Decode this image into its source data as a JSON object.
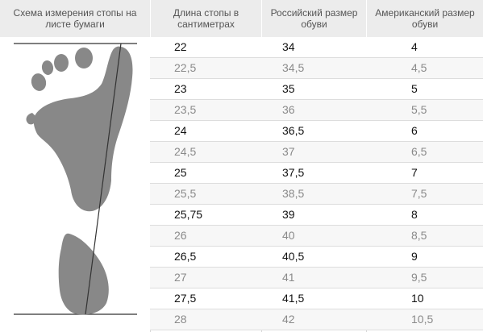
{
  "headers": {
    "diagram": "Схема измерения стопы на листе бумаги",
    "cm": "Длина стопы в сантиметрах",
    "ru": "Российский размер обуви",
    "us": "Американский размер обуви"
  },
  "colors": {
    "header_bg": "#ececec",
    "foot_fill": "#888888",
    "line": "#333333",
    "row_alt": "#f7f7f7"
  },
  "rows": [
    {
      "cm": "22",
      "ru": "34",
      "us": "4"
    },
    {
      "cm": "22,5",
      "ru": "34,5",
      "us": "4,5"
    },
    {
      "cm": "23",
      "ru": "35",
      "us": "5"
    },
    {
      "cm": "23,5",
      "ru": "36",
      "us": "5,5"
    },
    {
      "cm": "24",
      "ru": "36,5",
      "us": "6"
    },
    {
      "cm": "24,5",
      "ru": "37",
      "us": "6,5"
    },
    {
      "cm": "25",
      "ru": "37,5",
      "us": "7"
    },
    {
      "cm": "25,5",
      "ru": "38,5",
      "us": "7,5"
    },
    {
      "cm": "25,75",
      "ru": "39",
      "us": "8"
    },
    {
      "cm": "26",
      "ru": "40",
      "us": "8,5"
    },
    {
      "cm": "26,5",
      "ru": "40,5",
      "us": "9"
    },
    {
      "cm": "27",
      "ru": "41",
      "us": "9,5"
    },
    {
      "cm": "27,5",
      "ru": "41,5",
      "us": "10"
    },
    {
      "cm": "28",
      "ru": "42",
      "us": "10,5"
    }
  ]
}
